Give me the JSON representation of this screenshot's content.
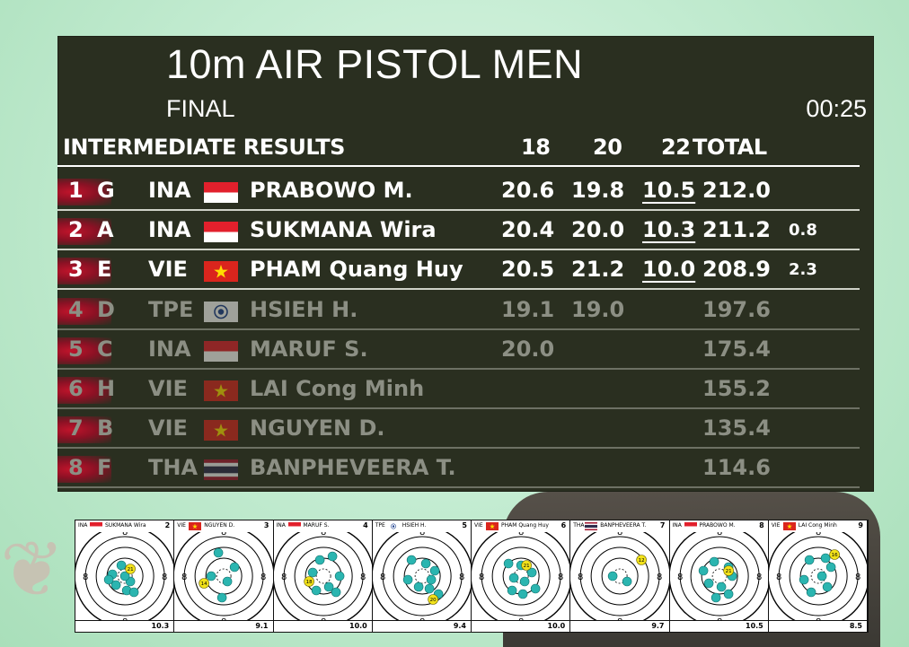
{
  "event": {
    "title": "10m AIR PISTOL MEN",
    "phase": "FINAL",
    "clock": "00:25"
  },
  "table": {
    "header": {
      "label": "INTERMEDIATE RESULTS",
      "s18": "18",
      "s20": "20",
      "s22": "22",
      "total": "TOTAL"
    },
    "rows": [
      {
        "rank": "1",
        "lane": "G",
        "nat": "INA",
        "flag": "INA",
        "name": "PRABOWO M.",
        "s18": "20.6",
        "s20": "19.8",
        "s22": "10.5",
        "total": "212.0",
        "diff": "",
        "dim": false
      },
      {
        "rank": "2",
        "lane": "A",
        "nat": "INA",
        "flag": "INA",
        "name": "SUKMANA Wira",
        "s18": "20.4",
        "s20": "20.0",
        "s22": "10.3",
        "total": "211.2",
        "diff": "0.8",
        "dim": false
      },
      {
        "rank": "3",
        "lane": "E",
        "nat": "VIE",
        "flag": "VIE",
        "name": "PHAM Quang Huy",
        "s18": "20.5",
        "s20": "21.2",
        "s22": "10.0",
        "total": "208.9",
        "diff": "2.3",
        "dim": false
      },
      {
        "rank": "4",
        "lane": "D",
        "nat": "TPE",
        "flag": "TPE",
        "name": "HSIEH H.",
        "s18": "19.1",
        "s20": "19.0",
        "s22": "",
        "total": "197.6",
        "diff": "",
        "dim": true
      },
      {
        "rank": "5",
        "lane": "C",
        "nat": "INA",
        "flag": "INA",
        "name": "MARUF S.",
        "s18": "20.0",
        "s20": "",
        "s22": "",
        "total": "175.4",
        "diff": "",
        "dim": true
      },
      {
        "rank": "6",
        "lane": "H",
        "nat": "VIE",
        "flag": "VIE",
        "name": "LAI Cong Minh",
        "s18": "",
        "s20": "",
        "s22": "",
        "total": "155.2",
        "diff": "",
        "dim": true
      },
      {
        "rank": "7",
        "lane": "B",
        "nat": "VIE",
        "flag": "VIE",
        "name": "NGUYEN D.",
        "s18": "",
        "s20": "",
        "s22": "",
        "total": "135.4",
        "diff": "",
        "dim": true
      },
      {
        "rank": "8",
        "lane": "F",
        "nat": "THA",
        "flag": "THA",
        "name": "BANPHEVEERA T.",
        "s18": "",
        "s20": "",
        "s22": "",
        "total": "114.6",
        "diff": "",
        "dim": true
      }
    ]
  },
  "targets": [
    {
      "nat": "INA",
      "flag": "INA",
      "name": "SUKMANA Wira",
      "lane": "2",
      "last": "10.3",
      "ring_label": "8",
      "latest_shot": "21"
    },
    {
      "nat": "VIE",
      "flag": "VIE",
      "name": "NGUYEN D.",
      "lane": "3",
      "last": "9.1",
      "ring_label": "8",
      "latest_shot": "14"
    },
    {
      "nat": "INA",
      "flag": "INA",
      "name": "MARUF S.",
      "lane": "4",
      "last": "10.0",
      "ring_label": "8",
      "latest_shot": "18"
    },
    {
      "nat": "TPE",
      "flag": "TPE",
      "name": "HSIEH H.",
      "lane": "5",
      "last": "9.4",
      "ring_label": "8",
      "latest_shot": "20"
    },
    {
      "nat": "VIE",
      "flag": "VIE",
      "name": "PHAM Quang Huy",
      "lane": "6",
      "last": "10.0",
      "ring_label": "8",
      "latest_shot": "21"
    },
    {
      "nat": "THA",
      "flag": "THA",
      "name": "BANPHEVEERA T.",
      "lane": "7",
      "last": "9.7",
      "ring_label": "8",
      "latest_shot": "12"
    },
    {
      "nat": "INA",
      "flag": "INA",
      "name": "PRABOWO M.",
      "lane": "8",
      "last": "10.5",
      "ring_label": "8",
      "latest_shot": "21"
    },
    {
      "nat": "VIE",
      "flag": "VIE",
      "name": "LAI Cong Minh",
      "lane": "9",
      "last": "8.5",
      "ring_label": "8",
      "latest_shot": "16"
    }
  ],
  "colors": {
    "board_bg": "#2a2f20",
    "shot_old": "#2bb5b0",
    "shot_latest": "#f2e21a",
    "rank_accent": "#c0142b"
  }
}
